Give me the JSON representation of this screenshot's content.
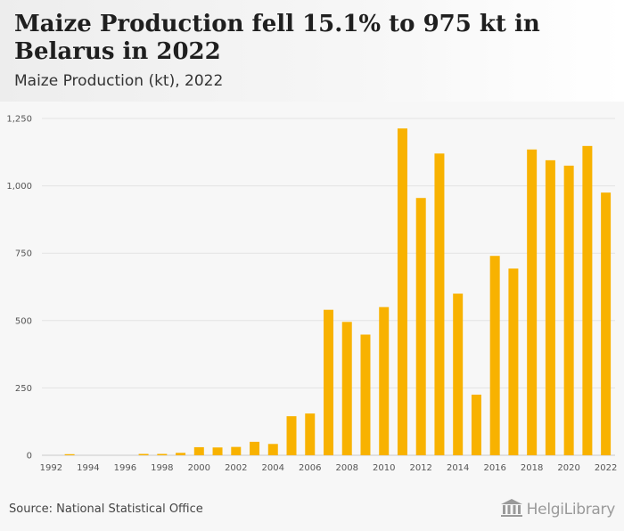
{
  "header": {
    "title": "Maize Production fell 15.1% to 975 kt in Belarus in 2022",
    "subtitle": "Maize Production (kt), 2022"
  },
  "footer": {
    "source": "Source: National Statistical Office",
    "logo_text": "HelgiLibrary"
  },
  "colors": {
    "bar": "#f8b200",
    "grid": "#e3e3e3",
    "axis_text": "#555555"
  },
  "chart_data": {
    "type": "bar",
    "title": "Maize Production fell 15.1% to 975 kt in Belarus in 2022",
    "subtitle": "Maize Production (kt), 2022",
    "xlabel": "",
    "ylabel": "",
    "ylim": [
      0,
      1250
    ],
    "yticks": [
      0,
      250,
      500,
      750,
      1000,
      1250
    ],
    "ytick_labels": [
      "0",
      "250",
      "500",
      "750",
      "1,000",
      "1,250"
    ],
    "grid": true,
    "categories": [
      "1992",
      "1993",
      "1994",
      "1995",
      "1996",
      "1997",
      "1998",
      "1999",
      "2000",
      "2001",
      "2002",
      "2003",
      "2004",
      "2005",
      "2006",
      "2007",
      "2008",
      "2009",
      "2010",
      "2011",
      "2012",
      "2013",
      "2014",
      "2015",
      "2016",
      "2017",
      "2018",
      "2019",
      "2020",
      "2021",
      "2022"
    ],
    "xtick_labels": [
      "1992",
      "1994",
      "1996",
      "1998",
      "2000",
      "2002",
      "2004",
      "2006",
      "2008",
      "2010",
      "2012",
      "2014",
      "2016",
      "2018",
      "2020",
      "2022"
    ],
    "values": [
      0,
      4,
      0,
      0,
      0,
      5,
      5,
      9,
      30,
      29,
      31,
      50,
      42,
      145,
      155,
      540,
      495,
      448,
      550,
      1213,
      955,
      1120,
      600,
      225,
      740,
      693,
      1135,
      1095,
      1075,
      1148,
      975
    ]
  }
}
